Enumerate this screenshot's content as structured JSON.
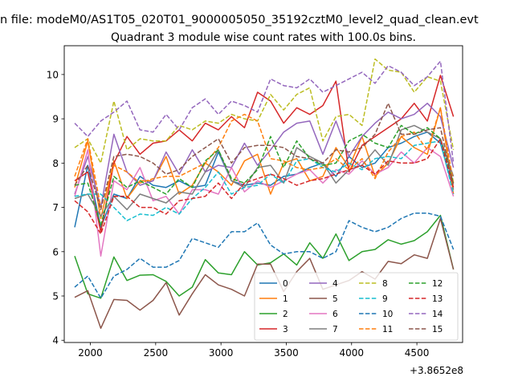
{
  "suptitle": "n file: modeM0/AS1T05_020T01_9000005050_35192cztM0_level2_quad_clean.evt",
  "chart_data": {
    "type": "line",
    "title": "Quadrant 3 module wise count rates with 100.0s bins.",
    "xlabel": "",
    "ylabel": "",
    "x_offset_label": "+3.8652e8",
    "xlim": [
      1800,
      4850
    ],
    "ylim": [
      3.95,
      10.65
    ],
    "x_ticks": [
      2000,
      2500,
      3000,
      3500,
      4000,
      4500
    ],
    "x_tick_labels": [
      "2000",
      "2500",
      "3000",
      "3500",
      "4000",
      "4500"
    ],
    "y_ticks": [
      4,
      5,
      6,
      7,
      8,
      9,
      10
    ],
    "y_tick_labels": [
      "4",
      "5",
      "6",
      "7",
      "8",
      "9",
      "10"
    ],
    "grid": false,
    "legend_position": "lower-right",
    "legend_columns": 4,
    "x": [
      1880,
      1980,
      2080,
      2180,
      2280,
      2380,
      2480,
      2580,
      2680,
      2780,
      2880,
      2980,
      3080,
      3180,
      3280,
      3380,
      3480,
      3580,
      3680,
      3780,
      3880,
      3980,
      4080,
      4180,
      4280,
      4380,
      4480,
      4580,
      4680,
      4780
    ],
    "series": [
      {
        "name": "0",
        "color": "#1f77b4",
        "linestyle": "solid",
        "values": [
          6.55,
          7.95,
          6.55,
          7.3,
          7.2,
          7.7,
          7.5,
          7.45,
          7.6,
          7.45,
          7.5,
          8.25,
          7.6,
          7.5,
          7.55,
          7.5,
          7.7,
          7.75,
          7.9,
          8.0,
          7.7,
          8.15,
          7.9,
          8.0,
          8.35,
          8.45,
          8.6,
          8.7,
          8.45,
          7.4
        ]
      },
      {
        "name": "1",
        "color": "#ff7f0e",
        "linestyle": "solid",
        "values": [
          7.45,
          8.5,
          6.75,
          8.05,
          7.2,
          7.6,
          7.6,
          8.15,
          7.3,
          7.5,
          8.0,
          7.8,
          7.5,
          8.05,
          8.2,
          7.3,
          8.0,
          8.1,
          7.6,
          7.7,
          8.35,
          7.9,
          8.6,
          7.7,
          8.0,
          8.6,
          8.35,
          8.2,
          9.25,
          7.3
        ]
      },
      {
        "name": "2",
        "color": "#2ca02c",
        "linestyle": "solid",
        "values": [
          5.9,
          5.05,
          4.95,
          5.88,
          5.35,
          5.47,
          5.48,
          5.33,
          5.0,
          5.2,
          5.82,
          5.52,
          5.48,
          6.0,
          5.7,
          5.75,
          5.95,
          5.7,
          6.2,
          5.85,
          6.4,
          5.8,
          6.0,
          6.05,
          6.27,
          6.17,
          6.25,
          6.45,
          6.82,
          5.6
        ]
      },
      {
        "name": "3",
        "color": "#d62728",
        "linestyle": "solid",
        "values": [
          7.6,
          7.8,
          6.45,
          8.0,
          8.6,
          8.2,
          8.45,
          8.5,
          8.75,
          8.5,
          8.9,
          8.75,
          9.05,
          8.8,
          9.6,
          9.4,
          8.9,
          9.25,
          9.1,
          9.3,
          9.85,
          7.8,
          8.4,
          8.6,
          8.8,
          9.0,
          9.35,
          8.95,
          9.98,
          9.05
        ]
      },
      {
        "name": "4",
        "color": "#9467bd",
        "linestyle": "solid",
        "values": [
          7.3,
          8.15,
          7.0,
          8.65,
          7.8,
          7.5,
          7.6,
          8.25,
          7.75,
          8.3,
          7.8,
          7.95,
          7.9,
          8.45,
          7.95,
          8.3,
          8.7,
          8.9,
          8.95,
          8.2,
          8.95,
          8.15,
          8.6,
          8.9,
          9.15,
          9.0,
          9.1,
          9.35,
          9.05,
          7.9
        ]
      },
      {
        "name": "5",
        "color": "#8c564b",
        "linestyle": "solid",
        "values": [
          4.97,
          5.12,
          4.27,
          4.92,
          4.9,
          4.68,
          4.9,
          5.3,
          4.57,
          5.05,
          5.48,
          5.25,
          5.15,
          5.0,
          5.72,
          5.72,
          5.1,
          5.55,
          5.85,
          5.15,
          5.25,
          5.35,
          5.55,
          5.38,
          5.78,
          5.73,
          5.93,
          5.85,
          6.75,
          5.6
        ]
      },
      {
        "name": "6",
        "color": "#e377c2",
        "linestyle": "solid",
        "values": [
          7.25,
          8.3,
          5.9,
          7.6,
          7.4,
          7.9,
          7.15,
          7.25,
          6.85,
          7.4,
          7.4,
          7.3,
          7.9,
          7.35,
          7.6,
          7.45,
          7.6,
          7.75,
          7.85,
          7.55,
          7.85,
          7.75,
          8.05,
          7.75,
          7.9,
          8.25,
          8.0,
          8.35,
          8.15,
          7.25
        ]
      },
      {
        "name": "7",
        "color": "#7f7f7f",
        "linestyle": "solid",
        "values": [
          7.2,
          7.3,
          6.8,
          7.25,
          6.95,
          7.3,
          7.2,
          7.1,
          7.35,
          7.3,
          7.8,
          8.3,
          7.6,
          7.45,
          7.9,
          7.95,
          7.55,
          8.35,
          8.15,
          8.0,
          7.55,
          7.85,
          7.95,
          8.3,
          7.95,
          8.75,
          8.85,
          8.7,
          8.55,
          7.7
        ]
      },
      {
        "name": "8",
        "color": "#bcbd22",
        "linestyle": "dashed",
        "values": [
          8.35,
          8.55,
          8.0,
          9.4,
          8.3,
          8.55,
          8.5,
          8.5,
          8.85,
          8.75,
          8.95,
          8.9,
          9.1,
          9.0,
          8.95,
          9.55,
          9.2,
          9.55,
          9.7,
          8.5,
          9.05,
          9.1,
          8.85,
          10.35,
          10.1,
          10.05,
          9.6,
          9.95,
          9.85,
          8.3
        ]
      },
      {
        "name": "9",
        "color": "#17becf",
        "linestyle": "dashed",
        "values": [
          7.25,
          7.3,
          7.3,
          7.0,
          6.7,
          6.85,
          6.82,
          7.0,
          6.85,
          7.2,
          7.45,
          7.8,
          7.3,
          7.45,
          7.5,
          7.75,
          7.55,
          8.05,
          8.1,
          7.9,
          7.8,
          8.0,
          7.85,
          8.1,
          8.15,
          8.1,
          8.4,
          8.45,
          8.5,
          7.3
        ]
      },
      {
        "name": "10",
        "color": "#1f77b4",
        "linestyle": "dashed",
        "values": [
          5.2,
          5.45,
          4.95,
          5.45,
          5.6,
          5.85,
          5.65,
          5.65,
          5.8,
          6.3,
          6.2,
          6.1,
          6.45,
          6.45,
          6.65,
          6.15,
          5.95,
          6.0,
          6.0,
          5.85,
          6.0,
          6.7,
          6.55,
          6.45,
          6.55,
          6.75,
          6.87,
          6.87,
          6.8,
          6.05
        ]
      },
      {
        "name": "11",
        "color": "#ff7f0e",
        "linestyle": "dashed",
        "values": [
          7.7,
          8.55,
          7.0,
          7.95,
          7.8,
          7.55,
          7.65,
          7.7,
          7.7,
          7.85,
          8.0,
          8.35,
          8.95,
          9.1,
          8.95,
          8.1,
          8.05,
          7.9,
          7.85,
          7.9,
          8.1,
          7.85,
          8.1,
          7.65,
          8.25,
          8.6,
          8.7,
          8.3,
          9.25,
          7.55
        ]
      },
      {
        "name": "12",
        "color": "#2ca02c",
        "linestyle": "dashed",
        "values": [
          7.5,
          7.55,
          6.6,
          7.7,
          7.45,
          7.6,
          7.45,
          7.3,
          7.65,
          7.45,
          8.05,
          8.3,
          7.65,
          7.55,
          7.85,
          8.6,
          7.9,
          8.5,
          8.1,
          7.95,
          8.0,
          8.5,
          8.65,
          8.45,
          8.35,
          8.85,
          8.65,
          8.8,
          8.55,
          7.55
        ]
      },
      {
        "name": "13",
        "color": "#d62728",
        "linestyle": "dashed",
        "values": [
          7.15,
          6.9,
          6.4,
          7.25,
          7.25,
          7.0,
          7.0,
          6.85,
          7.15,
          7.2,
          7.25,
          7.55,
          7.2,
          7.55,
          7.65,
          7.75,
          7.65,
          7.5,
          7.6,
          7.65,
          7.75,
          7.85,
          7.95,
          7.75,
          8.05,
          8.0,
          8.0,
          8.1,
          8.55,
          7.45
        ]
      },
      {
        "name": "14",
        "color": "#9467bd",
        "linestyle": "dashed",
        "values": [
          8.9,
          8.6,
          8.95,
          9.15,
          9.4,
          8.75,
          8.7,
          9.1,
          8.75,
          9.25,
          9.45,
          9.1,
          9.4,
          9.3,
          9.15,
          9.9,
          9.75,
          9.7,
          9.9,
          9.6,
          9.75,
          9.9,
          10.05,
          9.8,
          10.2,
          10.05,
          9.75,
          9.95,
          10.3,
          8.0
        ]
      },
      {
        "name": "15",
        "color": "#8c564b",
        "linestyle": "dashed",
        "values": [
          7.5,
          7.95,
          6.95,
          8.15,
          8.2,
          8.15,
          8.0,
          7.75,
          7.85,
          8.15,
          8.35,
          8.55,
          8.0,
          8.35,
          8.4,
          8.4,
          8.35,
          8.15,
          8.1,
          8.0,
          8.3,
          8.25,
          8.35,
          8.65,
          9.35,
          8.65,
          8.65,
          8.75,
          8.8,
          7.5
        ]
      }
    ]
  }
}
